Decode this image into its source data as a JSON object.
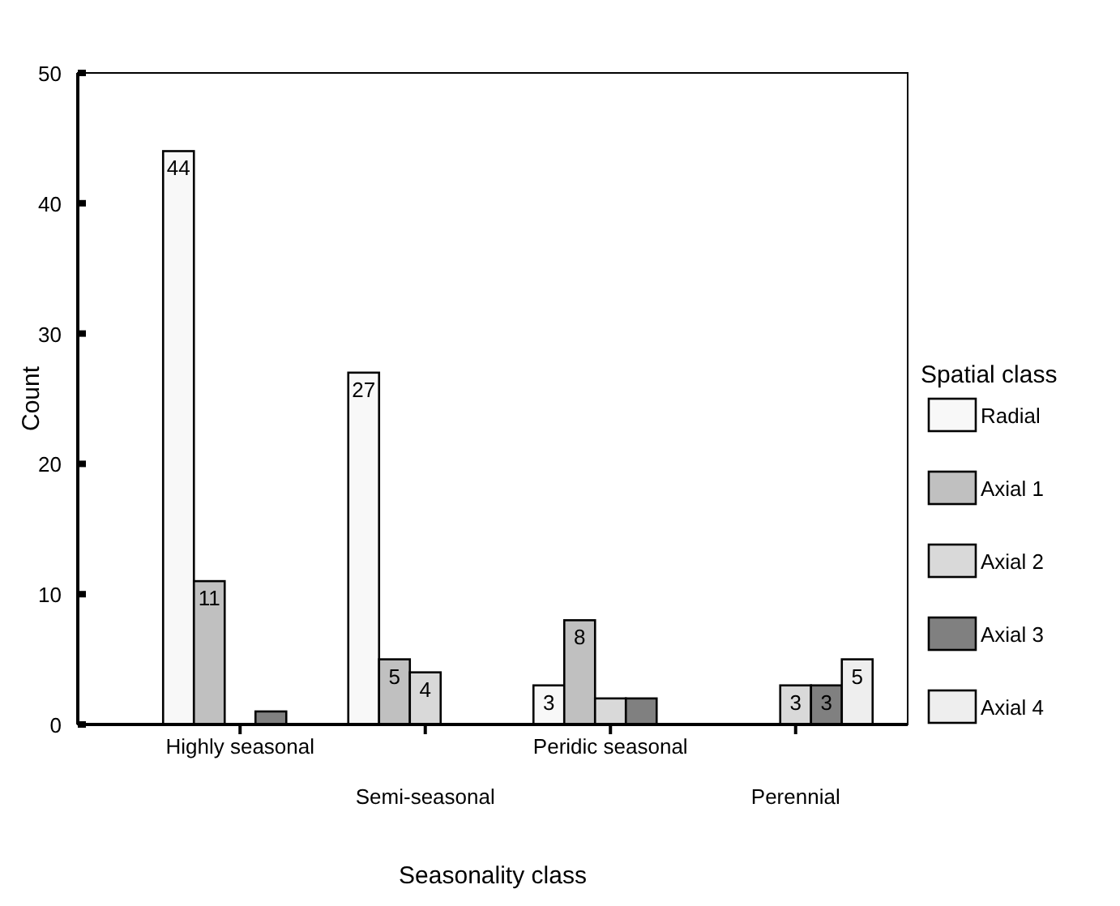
{
  "chart_data": {
    "type": "bar",
    "xlabel": "Seasonality class",
    "ylabel": "Count",
    "legend_title": "Spatial class",
    "legend": "right",
    "categories": [
      "Highly seasonal",
      "Semi-seasonal",
      "Peridic seasonal",
      "Perennial"
    ],
    "ylim": [
      0,
      50
    ],
    "yticks": [
      0,
      10,
      20,
      30,
      40,
      50
    ],
    "grid": false,
    "series": [
      {
        "name": "Radial",
        "color": "#f8f8f8",
        "values": [
          44,
          27,
          3,
          0
        ],
        "value_labels": [
          "44",
          "27",
          "3",
          null
        ]
      },
      {
        "name": "Axial 1",
        "color": "#c0c0c0",
        "values": [
          11,
          5,
          8,
          0
        ],
        "value_labels": [
          "11",
          "5",
          "8",
          null
        ]
      },
      {
        "name": "Axial 2",
        "color": "#d9d9d9",
        "values": [
          0,
          4,
          2,
          3
        ],
        "value_labels": [
          null,
          "4",
          null,
          "3"
        ]
      },
      {
        "name": "Axial 3",
        "color": "#808080",
        "values": [
          1,
          0,
          2,
          3
        ],
        "value_labels": [
          null,
          null,
          null,
          "3"
        ]
      },
      {
        "name": "Axial 4",
        "color": "#eeeeee",
        "values": [
          0,
          0,
          0,
          5
        ],
        "value_labels": [
          null,
          null,
          null,
          "5"
        ]
      }
    ]
  }
}
